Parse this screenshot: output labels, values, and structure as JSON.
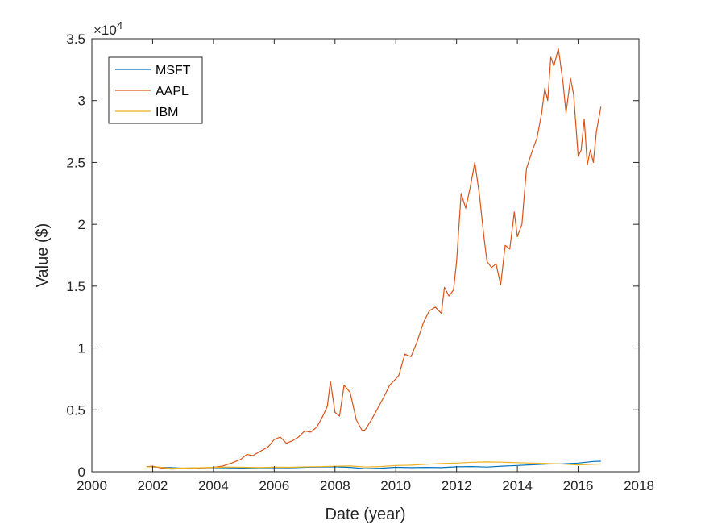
{
  "chart_data": {
    "type": "line",
    "title": "",
    "xlabel": "Date (year)",
    "ylabel": "Value ($)",
    "xlim": [
      2000,
      2018
    ],
    "ylim": [
      0,
      35000
    ],
    "x_ticks": [
      2000,
      2002,
      2004,
      2006,
      2008,
      2010,
      2012,
      2014,
      2016,
      2018
    ],
    "x_tick_labels": [
      "2000",
      "2002",
      "2004",
      "2006",
      "2008",
      "2010",
      "2012",
      "2014",
      "2016",
      "2018"
    ],
    "y_ticks": [
      0,
      5000,
      10000,
      15000,
      20000,
      25000,
      30000,
      35000
    ],
    "y_tick_labels": [
      "0",
      "0.5",
      "1",
      "1.5",
      "2",
      "2.5",
      "3",
      "3.5"
    ],
    "y_exponent_label": "×10",
    "y_exponent_power": "4",
    "grid": false,
    "box": true,
    "legend_position": "top-left",
    "series": [
      {
        "name": "MSFT",
        "color": "#0072BD",
        "x": [
          2001.8,
          2002.2,
          2002.6,
          2003.0,
          2003.5,
          2004.0,
          2004.5,
          2005.0,
          2005.5,
          2006.0,
          2006.5,
          2007.0,
          2007.5,
          2008.0,
          2008.5,
          2009.0,
          2009.5,
          2010.0,
          2010.5,
          2011.0,
          2011.5,
          2012.0,
          2012.5,
          2013.0,
          2013.5,
          2014.0,
          2014.5,
          2015.0,
          2015.5,
          2016.0,
          2016.5,
          2016.75
        ],
        "y": [
          420,
          360,
          330,
          290,
          310,
          330,
          320,
          300,
          310,
          330,
          310,
          360,
          380,
          400,
          350,
          250,
          290,
          360,
          330,
          350,
          330,
          400,
          420,
          380,
          450,
          500,
          560,
          620,
          640,
          700,
          830,
          850
        ]
      },
      {
        "name": "AAPL",
        "color": "#D95319",
        "x": [
          2001.8,
          2002.0,
          2002.3,
          2002.6,
          2002.9,
          2003.2,
          2003.6,
          2004.0,
          2004.3,
          2004.6,
          2004.9,
          2005.1,
          2005.3,
          2005.5,
          2005.8,
          2006.0,
          2006.2,
          2006.4,
          2006.6,
          2006.8,
          2007.0,
          2007.2,
          2007.4,
          2007.6,
          2007.75,
          2007.85,
          2008.0,
          2008.15,
          2008.3,
          2008.5,
          2008.7,
          2008.9,
          2009.0,
          2009.2,
          2009.4,
          2009.6,
          2009.8,
          2010.0,
          2010.1,
          2010.3,
          2010.5,
          2010.7,
          2010.9,
          2011.1,
          2011.3,
          2011.5,
          2011.6,
          2011.75,
          2011.9,
          2012.0,
          2012.15,
          2012.3,
          2012.45,
          2012.6,
          2012.75,
          2012.9,
          2013.0,
          2013.15,
          2013.3,
          2013.45,
          2013.6,
          2013.75,
          2013.9,
          2014.0,
          2014.15,
          2014.3,
          2014.5,
          2014.65,
          2014.8,
          2014.9,
          2015.0,
          2015.1,
          2015.2,
          2015.35,
          2015.5,
          2015.6,
          2015.75,
          2015.85,
          2016.0,
          2016.1,
          2016.2,
          2016.3,
          2016.4,
          2016.5,
          2016.6,
          2016.75
        ],
        "y": [
          400,
          450,
          300,
          220,
          240,
          250,
          300,
          350,
          450,
          700,
          1000,
          1400,
          1300,
          1600,
          2000,
          2600,
          2800,
          2300,
          2500,
          2800,
          3300,
          3200,
          3600,
          4500,
          5300,
          7300,
          4800,
          4500,
          7000,
          6400,
          4200,
          3300,
          3400,
          4200,
          5100,
          6000,
          7000,
          7500,
          7800,
          9500,
          9300,
          10500,
          12000,
          13000,
          13300,
          12800,
          14900,
          14200,
          14700,
          17000,
          22500,
          21300,
          23000,
          25000,
          22400,
          19000,
          17000,
          16500,
          16800,
          15100,
          18300,
          18000,
          21000,
          19000,
          20000,
          24500,
          26000,
          27000,
          29000,
          31000,
          30000,
          33500,
          32800,
          34200,
          31500,
          29000,
          31800,
          30500,
          25500,
          26000,
          28500,
          24800,
          26000,
          25000,
          27500,
          29500
        ]
      },
      {
        "name": "IBM",
        "color": "#EDB120",
        "x": [
          2001.8,
          2002.2,
          2002.6,
          2003.0,
          2003.5,
          2004.0,
          2004.5,
          2005.0,
          2005.5,
          2006.0,
          2006.5,
          2007.0,
          2007.5,
          2008.0,
          2008.5,
          2009.0,
          2009.5,
          2010.0,
          2010.5,
          2011.0,
          2011.5,
          2012.0,
          2012.5,
          2013.0,
          2013.5,
          2014.0,
          2014.5,
          2015.0,
          2015.5,
          2016.0,
          2016.5,
          2016.75
        ],
        "y": [
          400,
          380,
          280,
          300,
          320,
          350,
          380,
          360,
          340,
          370,
          360,
          390,
          410,
          440,
          460,
          380,
          420,
          500,
          530,
          600,
          660,
          700,
          760,
          790,
          770,
          730,
          700,
          660,
          620,
          550,
          600,
          620
        ]
      }
    ]
  }
}
